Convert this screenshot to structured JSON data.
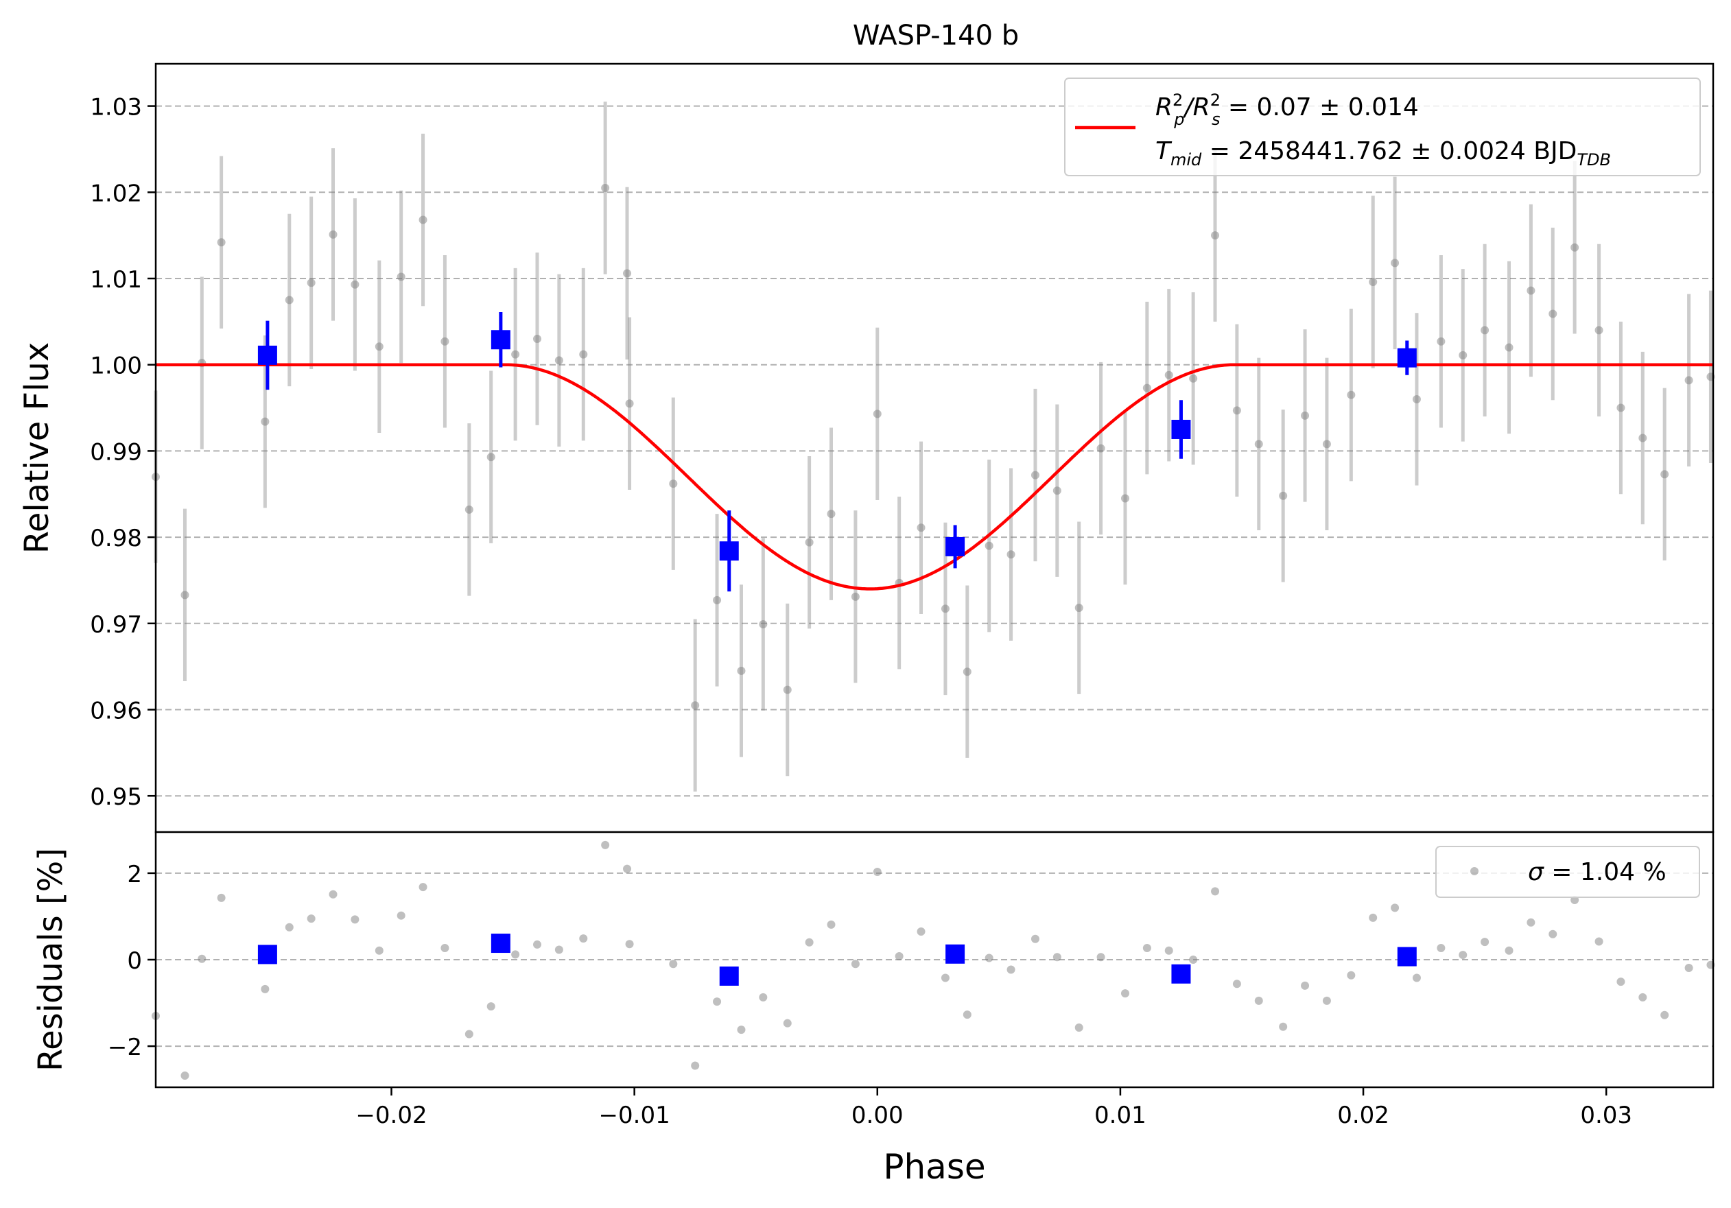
{
  "chart_data": [
    {
      "type": "scatter",
      "title": "WASP-140 b",
      "xlabel": "",
      "ylabel": "Relative Flux",
      "xlim": [
        -0.0297,
        0.0344
      ],
      "ylim": [
        0.9458,
        1.0349
      ],
      "yticks": [
        0.95,
        0.96,
        0.97,
        0.98,
        0.99,
        1.0,
        1.01,
        1.02,
        1.03
      ],
      "ytick_labels": [
        "0.95",
        "0.96",
        "0.97",
        "0.98",
        "0.99",
        "1.00",
        "1.01",
        "1.02",
        "1.03"
      ],
      "grid": "horizontal dashed",
      "legend_position": "top-right",
      "legend": {
        "line1": {
          "main": "R",
          "sub1": "p",
          "sup1": "2",
          "slash": "/R",
          "sub2": "s",
          "sup2": "2",
          "rest": " = 0.07 ± 0.014"
        },
        "line2": {
          "main": "T",
          "sub1": "mid",
          "rest": " = 2458441.762 ± 0.0024 BJD",
          "sub2": "TDB"
        }
      },
      "model": {
        "color": "#ff0000",
        "baseline": 1.0,
        "depth_min": 0.974,
        "t1": -0.0153,
        "t4": 0.0147
      },
      "series": [
        {
          "role": "raw",
          "color": "#808080",
          "points": [
            [
              -0.0297,
              0.987,
              0.01
            ],
            [
              -0.0285,
              0.9733,
              0.01
            ],
            [
              -0.0278,
              1.0002,
              0.01
            ],
            [
              -0.027,
              1.0142,
              0.01
            ],
            [
              -0.0252,
              0.9934,
              0.01
            ],
            [
              -0.0242,
              1.0075,
              0.01
            ],
            [
              -0.0233,
              1.0095,
              0.01
            ],
            [
              -0.0224,
              1.0151,
              0.01
            ],
            [
              -0.0215,
              1.0093,
              0.01
            ],
            [
              -0.0205,
              1.0021,
              0.01
            ],
            [
              -0.0196,
              1.0102,
              0.01
            ],
            [
              -0.0187,
              1.0168,
              0.01
            ],
            [
              -0.0178,
              1.0027,
              0.01
            ],
            [
              -0.0168,
              0.9832,
              0.01
            ],
            [
              -0.0159,
              0.9893,
              0.01
            ],
            [
              -0.0149,
              1.0012,
              0.01
            ],
            [
              -0.014,
              1.003,
              0.01
            ],
            [
              -0.0131,
              1.0005,
              0.01
            ],
            [
              -0.0121,
              1.0012,
              0.01
            ],
            [
              -0.0112,
              1.0205,
              0.01
            ],
            [
              -0.0103,
              1.0106,
              0.01
            ],
            [
              -0.0102,
              0.9955,
              0.01
            ],
            [
              -0.0084,
              0.9862,
              0.01
            ],
            [
              -0.0075,
              0.9605,
              0.01
            ],
            [
              -0.0066,
              0.9727,
              0.01
            ],
            [
              -0.0056,
              0.9645,
              0.01
            ],
            [
              -0.0047,
              0.9699,
              0.01
            ],
            [
              -0.0037,
              0.9623,
              0.01
            ],
            [
              -0.0028,
              0.9794,
              0.01
            ],
            [
              -0.0019,
              0.9827,
              0.01
            ],
            [
              -0.0009,
              0.9731,
              0.01
            ],
            [
              0.0,
              0.9943,
              0.01
            ],
            [
              0.0009,
              0.9747,
              0.01
            ],
            [
              0.0018,
              0.9811,
              0.01
            ],
            [
              0.0028,
              0.9717,
              0.01
            ],
            [
              0.0037,
              0.9644,
              0.01
            ],
            [
              0.0046,
              0.979,
              0.01
            ],
            [
              0.0055,
              0.978,
              0.01
            ],
            [
              0.0065,
              0.9872,
              0.01
            ],
            [
              0.0074,
              0.9854,
              0.01
            ],
            [
              0.0083,
              0.9718,
              0.01
            ],
            [
              0.0092,
              0.9903,
              0.01
            ],
            [
              0.0102,
              0.9845,
              0.01
            ],
            [
              0.0111,
              0.9973,
              0.01
            ],
            [
              0.012,
              0.9988,
              0.01
            ],
            [
              0.013,
              0.9984,
              0.01
            ],
            [
              0.0139,
              1.015,
              0.01
            ],
            [
              0.0148,
              0.9947,
              0.01
            ],
            [
              0.0157,
              0.9908,
              0.01
            ],
            [
              0.0167,
              0.9848,
              0.01
            ],
            [
              0.0176,
              0.9941,
              0.01
            ],
            [
              0.0185,
              0.9908,
              0.01
            ],
            [
              0.0195,
              0.9965,
              0.01
            ],
            [
              0.0204,
              1.0096,
              0.01
            ],
            [
              0.0213,
              1.0118,
              0.01
            ],
            [
              0.0222,
              0.996,
              0.01
            ],
            [
              0.0232,
              1.0027,
              0.01
            ],
            [
              0.0241,
              1.0011,
              0.01
            ],
            [
              0.025,
              1.004,
              0.01
            ],
            [
              0.026,
              1.002,
              0.01
            ],
            [
              0.0269,
              1.0086,
              0.01
            ],
            [
              0.0278,
              1.0059,
              0.01
            ],
            [
              0.0287,
              1.0136,
              0.01
            ],
            [
              0.0297,
              1.004,
              0.01
            ],
            [
              0.0306,
              0.995,
              0.01
            ],
            [
              0.0315,
              0.9915,
              0.01
            ],
            [
              0.0324,
              0.9873,
              0.01
            ],
            [
              0.0334,
              0.9982,
              0.01
            ],
            [
              0.0343,
              0.9986,
              0.01
            ]
          ]
        },
        {
          "role": "binned",
          "color": "#0000ff",
          "points": [
            [
              -0.0251,
              1.0011,
              0.004
            ],
            [
              -0.0155,
              1.0029,
              0.0032
            ],
            [
              -0.0061,
              0.9784,
              0.0047
            ],
            [
              0.0032,
              0.9789,
              0.0025
            ],
            [
              0.0125,
              0.9925,
              0.0034
            ],
            [
              0.0218,
              1.0008,
              0.002
            ]
          ]
        }
      ]
    },
    {
      "type": "scatter",
      "title": "",
      "xlabel": "Phase",
      "ylabel": "Residuals [%]",
      "xlim": [
        -0.0297,
        0.0344
      ],
      "ylim": [
        -2.95,
        2.95
      ],
      "xticks": [
        -0.02,
        -0.01,
        0.0,
        0.01,
        0.02,
        0.03
      ],
      "xtick_labels": [
        "−0.02",
        "−0.01",
        "0.00",
        "0.01",
        "0.02",
        "0.03"
      ],
      "yticks": [
        -2,
        0,
        2
      ],
      "ytick_labels": [
        "−2",
        "0",
        "2"
      ],
      "grid": "horizontal dashed",
      "legend_position": "top-right",
      "legend": {
        "sigma_symbol": "σ",
        "text": " = 1.04 %"
      },
      "series": [
        {
          "role": "raw",
          "color": "#808080",
          "points": [
            [
              -0.0297,
              -1.3
            ],
            [
              -0.0285,
              -2.68
            ],
            [
              -0.0278,
              0.02
            ],
            [
              -0.027,
              1.43
            ],
            [
              -0.0252,
              -0.68
            ],
            [
              -0.0242,
              0.75
            ],
            [
              -0.0233,
              0.95
            ],
            [
              -0.0224,
              1.51
            ],
            [
              -0.0215,
              0.93
            ],
            [
              -0.0205,
              0.21
            ],
            [
              -0.0196,
              1.02
            ],
            [
              -0.0187,
              1.68
            ],
            [
              -0.0178,
              0.27
            ],
            [
              -0.0168,
              -1.72
            ],
            [
              -0.0159,
              -1.08
            ],
            [
              -0.0149,
              0.12
            ],
            [
              -0.014,
              0.35
            ],
            [
              -0.0131,
              0.23
            ],
            [
              -0.0121,
              0.49
            ],
            [
              -0.0112,
              2.65
            ],
            [
              -0.0103,
              2.1
            ],
            [
              -0.0102,
              0.36
            ],
            [
              -0.0084,
              -0.1
            ],
            [
              -0.0075,
              -2.45
            ],
            [
              -0.0066,
              -0.97
            ],
            [
              -0.0056,
              -1.62
            ],
            [
              -0.0047,
              -0.87
            ],
            [
              -0.0037,
              -1.47
            ],
            [
              -0.0028,
              0.4
            ],
            [
              -0.0019,
              0.81
            ],
            [
              -0.0009,
              -0.1
            ],
            [
              0.0,
              2.03
            ],
            [
              0.0009,
              0.08
            ],
            [
              0.0018,
              0.65
            ],
            [
              0.0028,
              -0.42
            ],
            [
              0.0037,
              -1.27
            ],
            [
              0.0046,
              0.04
            ],
            [
              0.0055,
              -0.23
            ],
            [
              0.0065,
              0.48
            ],
            [
              0.0074,
              0.06
            ],
            [
              0.0083,
              -1.57
            ],
            [
              0.0092,
              0.06
            ],
            [
              0.0102,
              -0.78
            ],
            [
              0.0111,
              0.27
            ],
            [
              0.012,
              0.21
            ],
            [
              0.013,
              0.0
            ],
            [
              0.0139,
              1.58
            ],
            [
              0.0148,
              -0.56
            ],
            [
              0.0157,
              -0.95
            ],
            [
              0.0167,
              -1.55
            ],
            [
              0.0176,
              -0.6
            ],
            [
              0.0185,
              -0.95
            ],
            [
              0.0195,
              -0.36
            ],
            [
              0.0204,
              0.97
            ],
            [
              0.0213,
              1.2
            ],
            [
              0.0222,
              -0.42
            ],
            [
              0.0232,
              0.27
            ],
            [
              0.0241,
              0.11
            ],
            [
              0.025,
              0.41
            ],
            [
              0.026,
              0.21
            ],
            [
              0.0269,
              0.86
            ],
            [
              0.0278,
              0.59
            ],
            [
              0.0287,
              1.38
            ],
            [
              0.0297,
              0.42
            ],
            [
              0.0306,
              -0.51
            ],
            [
              0.0315,
              -0.87
            ],
            [
              0.0324,
              -1.28
            ],
            [
              0.0334,
              -0.19
            ],
            [
              0.0343,
              -0.12
            ]
          ]
        },
        {
          "role": "binned",
          "color": "#0000ff",
          "points": [
            [
              -0.0251,
              0.12
            ],
            [
              -0.0155,
              0.38
            ],
            [
              -0.0061,
              -0.38
            ],
            [
              0.0032,
              0.13
            ],
            [
              0.0125,
              -0.33
            ],
            [
              0.0218,
              0.07
            ]
          ]
        }
      ]
    }
  ]
}
